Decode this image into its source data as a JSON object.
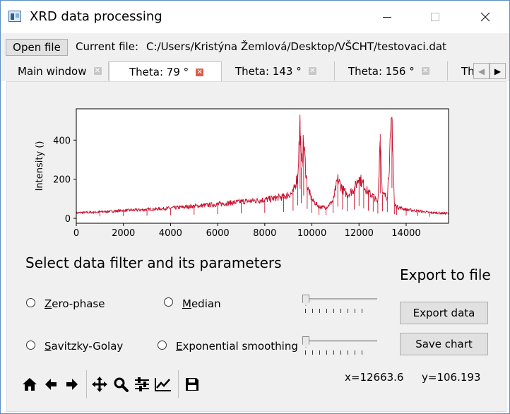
{
  "window": {
    "title": "XRD data processing"
  },
  "toolbar": {
    "open_file_label": "Open file",
    "current_file_label": "Current file:",
    "current_file_path": "C:/Users/Kristýna Žemlová/Desktop/VŠCHT/testovaci.dat"
  },
  "tabs": [
    {
      "label": "Main window",
      "close": "✕"
    },
    {
      "label": "Theta:  79 °",
      "close": "✕",
      "active": true
    },
    {
      "label": "Theta:  143 °",
      "close": "✕"
    },
    {
      "label": "Theta:  156 °",
      "close": "✕"
    },
    {
      "label": "Th"
    }
  ],
  "chart_data": {
    "type": "line",
    "ylabel": "Intensity ()",
    "xlim": [
      0,
      15800
    ],
    "ylim": [
      -25,
      560
    ],
    "xticks": [
      0,
      2000,
      4000,
      6000,
      8000,
      10000,
      12000,
      14000
    ],
    "yticks": [
      0,
      200,
      400
    ],
    "series_color": "#c8102e",
    "series": [
      {
        "x": [
          0,
          1000,
          2000,
          3000,
          4000,
          5000,
          6000,
          7000,
          8000,
          8800,
          9200,
          9400,
          9500,
          9550,
          9650,
          9800,
          10000,
          10300,
          10600,
          10900,
          11100,
          11300,
          11500,
          11800,
          12000,
          12200,
          12400,
          12600,
          12800,
          12900,
          13000,
          13200,
          13400,
          13500,
          13600,
          14000,
          14500,
          15000,
          15800
        ],
        "y": [
          28,
          33,
          40,
          45,
          52,
          62,
          72,
          85,
          95,
          110,
          130,
          220,
          500,
          260,
          390,
          160,
          95,
          60,
          55,
          90,
          200,
          150,
          120,
          150,
          210,
          170,
          130,
          115,
          80,
          430,
          120,
          110,
          520,
          70,
          60,
          45,
          38,
          30,
          25
        ]
      }
    ]
  },
  "filters": {
    "heading": "Select data filter and its parameters",
    "zero_phase": "Zero-phase",
    "median": "Median",
    "savitzky_golay": "Savitzky-Golay",
    "exponential": "Exponential smoothing",
    "slider1_value": 0,
    "slider2_value": 0
  },
  "export": {
    "heading": "Export to file",
    "export_data": "Export data",
    "save_chart": "Save chart"
  },
  "coords": {
    "x": "x=12663.6",
    "y": "y=106.193"
  }
}
